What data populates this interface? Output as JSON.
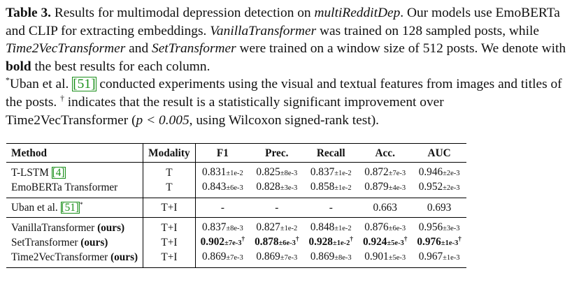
{
  "caption": {
    "label": "Table 3.",
    "seg1": " Results for multimodal depression detection on ",
    "dataset": "multiRedditDep",
    "seg2": ". Our models use EmoBERTa and CLIP for extracting embeddings. ",
    "vanilla": "VanillaTransformer",
    "seg3": " was trained on 128 sampled posts, while ",
    "time2vec": "Time2VecTransformer",
    "seg4": " and ",
    "settrans": "SetTransformer",
    "seg5": " were trained on a window size of 512 posts. We denote with ",
    "bold_word": "bold",
    "seg6": " the best results for each column.",
    "star": "*",
    "seg7": "Uban et al. ",
    "cite": "51",
    "seg8": " conducted experiments using the visual and textual features from images and titles of the posts. ",
    "dagger": "†",
    "seg9": " indicates that the result is a statistically significant improvement over Time2VecTransformer (",
    "p_expr": "p < 0.005",
    "seg10": ", using Wilcoxon signed-rank test)."
  },
  "table": {
    "headers": [
      "Method",
      "Modality",
      "F1",
      "Prec.",
      "Recall",
      "Acc.",
      "AUC"
    ],
    "rows": [
      {
        "method": "T-LSTM ",
        "cite": "4",
        "method_suffix": "",
        "modality": "T",
        "cells": [
          [
            "0.831",
            "±1e-2"
          ],
          [
            "0.825",
            "±8e-3"
          ],
          [
            "0.837",
            "±1e-2"
          ],
          [
            "0.872",
            "±7e-3"
          ],
          [
            "0.946",
            "±2e-3"
          ]
        ]
      },
      {
        "method": "EmoBERTa Transformer",
        "modality": "T",
        "cells": [
          [
            "0.843",
            "±6e-3"
          ],
          [
            "0.828",
            "±3e-3"
          ],
          [
            "0.858",
            "±1e-2"
          ],
          [
            "0.879",
            "±4e-3"
          ],
          [
            "0.952",
            "±2e-3"
          ]
        ]
      },
      {
        "method": "Uban et al. ",
        "cite": "51",
        "method_suffix": "*",
        "modality": "T+I",
        "cells": [
          "-",
          "-",
          "-",
          "0.663",
          "0.693"
        ]
      },
      {
        "method": "VanillaTransformer ",
        "ours": "(ours)",
        "modality": "T+I",
        "cells": [
          [
            "0.837",
            "±8e-3"
          ],
          [
            "0.827",
            "±1e-2"
          ],
          [
            "0.848",
            "±1e-2"
          ],
          [
            "0.876",
            "±6e-3"
          ],
          [
            "0.956",
            "±3e-3"
          ]
        ]
      },
      {
        "method": "SetTransformer ",
        "ours": "(ours)",
        "modality": "T+I",
        "cells": [
          [
            "0.902",
            "±7e-3",
            "†"
          ],
          [
            "0.878",
            "±6e-3",
            "†"
          ],
          [
            "0.928",
            "±1e-2",
            "†"
          ],
          [
            "0.924",
            "±5e-3",
            "†"
          ],
          [
            "0.976",
            "±1e-3",
            "†"
          ]
        ]
      },
      {
        "method": "Time2VecTransformer ",
        "ours": "(ours)",
        "modality": "T+I",
        "cells": [
          [
            "0.869",
            "±7e-3"
          ],
          [
            "0.869",
            "±7e-3"
          ],
          [
            "0.869",
            "±8e-3"
          ],
          [
            "0.901",
            "±5e-3"
          ],
          [
            "0.967",
            "±1e-3"
          ]
        ]
      }
    ]
  }
}
